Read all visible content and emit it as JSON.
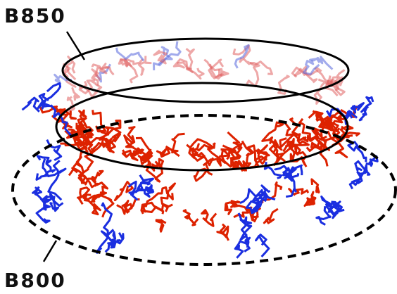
{
  "labels": {
    "top": "B850",
    "bottom": "B800"
  }
}
